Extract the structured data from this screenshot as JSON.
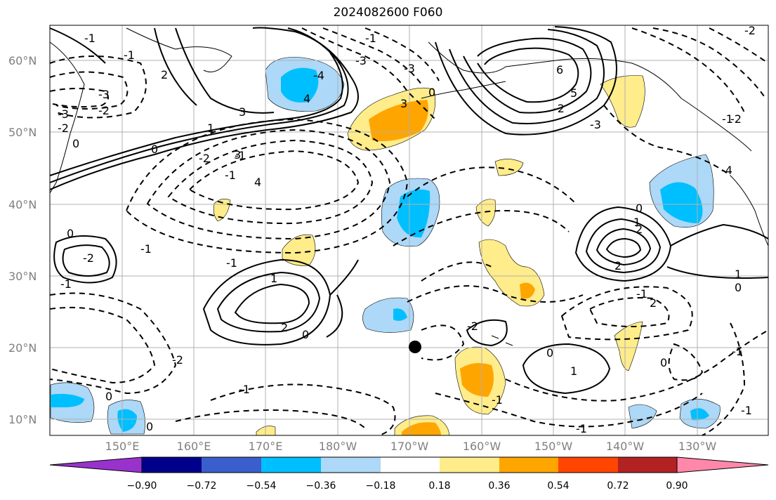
{
  "title": "2024082600 F060",
  "lat_labels": [
    "60°N",
    "50°N",
    "40°N",
    "30°N",
    "20°N",
    "10°N"
  ],
  "lon_labels": [
    "150°E",
    "160°E",
    "170°E",
    "180°W",
    "170°W",
    "160°W",
    "150°W",
    "140°W",
    "130°W"
  ],
  "colorbar": {
    "ticks": [
      "−0.90",
      "−0.72",
      "−0.54",
      "−0.36",
      "−0.18",
      "0.18",
      "0.36",
      "0.54",
      "0.72",
      "0.90"
    ],
    "colors": [
      "#9932cc",
      "#00008b",
      "#3a5fcd",
      "#00bfff",
      "#add8f7",
      "#ffffff",
      "#ffec8b",
      "#ffa500",
      "#ff4500",
      "#b22222",
      "#ff88aa"
    ]
  },
  "contour_labels": [
    "-3",
    "-2",
    "-3",
    "-2",
    "-1",
    "1",
    "2",
    "3",
    "4",
    "-4",
    "-3",
    "3",
    "0",
    "-3",
    "-1",
    "-2",
    "-1",
    "-1",
    "0",
    "0",
    "1",
    "2",
    "3",
    "4",
    "5",
    "6",
    "-1",
    "-2",
    "-3",
    "-4",
    "0",
    "-2",
    "-1",
    "0",
    "1",
    "2",
    "2",
    "-1",
    "1",
    "2",
    "0",
    "0",
    "-1",
    "-2",
    "-1",
    "-1",
    "0",
    "-1",
    "0",
    "0",
    "1",
    "-1",
    "-2",
    "-1",
    "0",
    "-1",
    "-2",
    "-2",
    "-1"
  ],
  "marker": "storm-center"
}
